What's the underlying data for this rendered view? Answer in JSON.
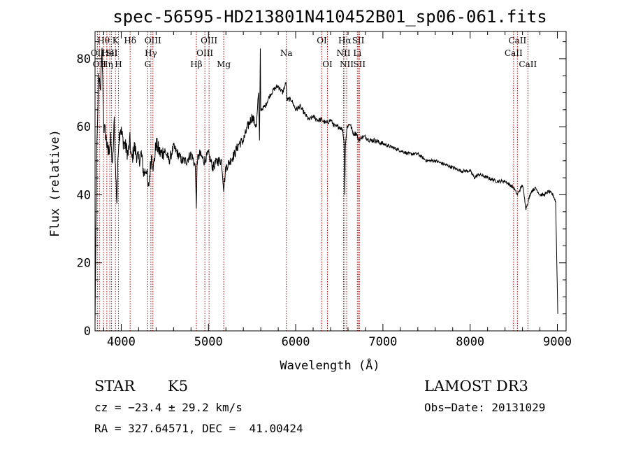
{
  "chart_data": {
    "type": "line",
    "title": "spec-56595-HD213801N410452B01_sp06-061.fits",
    "xlabel": "Wavelength (Å)",
    "ylabel": "Flux (relative)",
    "xlim": [
      3700,
      9100
    ],
    "ylim": [
      0,
      88
    ],
    "x_ticks": [
      4000,
      5000,
      6000,
      7000,
      8000,
      9000
    ],
    "x_tick_labels": [
      "4000",
      "5000",
      "6000",
      "7000",
      "8000",
      "9000"
    ],
    "y_ticks": [
      0,
      20,
      40,
      60,
      80
    ],
    "y_tick_labels": [
      "0",
      "20",
      "40",
      "60",
      "80"
    ],
    "grid": false,
    "series": [
      {
        "name": "flux",
        "x": [
          3700,
          3710,
          3720,
          3730,
          3740,
          3760,
          3780,
          3800,
          3820,
          3850,
          3880,
          3900,
          3920,
          3934,
          3950,
          3968,
          3990,
          4020,
          4050,
          4080,
          4100,
          4120,
          4150,
          4200,
          4230,
          4260,
          4290,
          4310,
          4330,
          4350,
          4370,
          4400,
          4450,
          4500,
          4550,
          4600,
          4650,
          4700,
          4750,
          4800,
          4830,
          4850,
          4861,
          4870,
          4900,
          4950,
          5000,
          5050,
          5100,
          5150,
          5175,
          5200,
          5250,
          5300,
          5350,
          5400,
          5450,
          5500,
          5550,
          5575,
          5585,
          5595,
          5600,
          5650,
          5700,
          5750,
          5800,
          5850,
          5890,
          5900,
          5950,
          6000,
          6050,
          6100,
          6150,
          6200,
          6250,
          6300,
          6350,
          6400,
          6450,
          6500,
          6540,
          6555,
          6563,
          6570,
          6590,
          6620,
          6660,
          6700,
          6720,
          6760,
          6800,
          6850,
          6900,
          7000,
          7100,
          7200,
          7300,
          7400,
          7500,
          7600,
          7700,
          7800,
          7900,
          8000,
          8050,
          8100,
          8200,
          8300,
          8400,
          8500,
          8540,
          8600,
          8640,
          8700,
          8750,
          8800,
          8850,
          8900,
          8950,
          8980,
          9000,
          9005
        ],
        "y": [
          2,
          30,
          55,
          62,
          75,
          70,
          82,
          60,
          58,
          52,
          56,
          48,
          62,
          48,
          38,
          55,
          60,
          56,
          54,
          52,
          56,
          50,
          54,
          50,
          52,
          46,
          48,
          41,
          47,
          52,
          48,
          55,
          52,
          53,
          50,
          54,
          52,
          50,
          50,
          52,
          50,
          48,
          36,
          50,
          52,
          50,
          52,
          48,
          50,
          50,
          42,
          48,
          50,
          52,
          55,
          56,
          60,
          63,
          60,
          70,
          56,
          83,
          65,
          66,
          69,
          71,
          72,
          70,
          73,
          68,
          68,
          65,
          66,
          64,
          62,
          63,
          62,
          62,
          61,
          62,
          60,
          60,
          59,
          55,
          40,
          55,
          60,
          61,
          58,
          58,
          56,
          57,
          57,
          56,
          56,
          55,
          54,
          53,
          52,
          52,
          50,
          50,
          49,
          48,
          47,
          47,
          45,
          46,
          45,
          44,
          44,
          42,
          40,
          43,
          36,
          41,
          42,
          40,
          40,
          41,
          40,
          38,
          12,
          5
        ]
      }
    ],
    "line_markers": [
      {
        "wavelength": 3727,
        "labels": [
          "OII"
        ],
        "row": 1
      },
      {
        "wavelength": 3750,
        "labels": [
          "OII"
        ],
        "row": 2
      },
      {
        "wavelength": 3797,
        "labels": [
          "Hθ"
        ],
        "row": 0
      },
      {
        "wavelength": 3835,
        "labels": [
          "Hη"
        ],
        "row": 2
      },
      {
        "wavelength": 3869,
        "labels": [
          "HeI"
        ],
        "row": 1
      },
      {
        "wavelength": 3889,
        "labels": [
          "SII"
        ],
        "row": 1
      },
      {
        "wavelength": 3934,
        "labels": [
          "K"
        ],
        "row": 0
      },
      {
        "wavelength": 3968,
        "labels": [
          "H"
        ],
        "row": 2
      },
      {
        "wavelength": 4102,
        "labels": [
          "Hδ"
        ],
        "row": 0
      },
      {
        "wavelength": 4304,
        "labels": [
          "G"
        ],
        "row": 2
      },
      {
        "wavelength": 4340,
        "labels": [
          "Hγ"
        ],
        "row": 1
      },
      {
        "wavelength": 4363,
        "labels": [
          "OIII"
        ],
        "row": 0
      },
      {
        "wavelength": 4861,
        "labels": [
          "Hβ"
        ],
        "row": 2
      },
      {
        "wavelength": 4959,
        "labels": [
          "OIII"
        ],
        "row": 1
      },
      {
        "wavelength": 5007,
        "labels": [
          "OIII"
        ],
        "row": 0
      },
      {
        "wavelength": 5175,
        "labels": [
          "Mg"
        ],
        "row": 2
      },
      {
        "wavelength": 5893,
        "labels": [
          "Na"
        ],
        "row": 1
      },
      {
        "wavelength": 6300,
        "labels": [
          "OI"
        ],
        "row": 0
      },
      {
        "wavelength": 6364,
        "labels": [
          "OI"
        ],
        "row": 2
      },
      {
        "wavelength": 6548,
        "labels": [
          "NII"
        ],
        "row": 1
      },
      {
        "wavelength": 6563,
        "labels": [
          "Hα"
        ],
        "row": 0
      },
      {
        "wavelength": 6584,
        "labels": [
          "NII"
        ],
        "row": 2
      },
      {
        "wavelength": 6707,
        "labels": [
          "Li"
        ],
        "row": 1
      },
      {
        "wavelength": 6717,
        "labels": [
          "SII"
        ],
        "row": 0
      },
      {
        "wavelength": 6731,
        "labels": [
          "SII"
        ],
        "row": 2
      },
      {
        "wavelength": 8498,
        "labels": [
          "CaII"
        ],
        "row": 1
      },
      {
        "wavelength": 8542,
        "labels": [
          "CaII"
        ],
        "row": 0
      },
      {
        "wavelength": 8662,
        "labels": [
          "CaII"
        ],
        "row": 2
      }
    ]
  },
  "info": {
    "object_class": "STAR",
    "subclass": "K5",
    "survey": "LAMOST DR3",
    "redshift_line": "cz = −23.4 ± 29.2 km/s",
    "obs_date_line": "Obs−Date: 20131029",
    "coords_line": "RA = 327.64571, DEC =  41.00424"
  },
  "colors": {
    "marker_line": "#cc0000",
    "spectrum": "#000000",
    "axes": "#000000"
  }
}
